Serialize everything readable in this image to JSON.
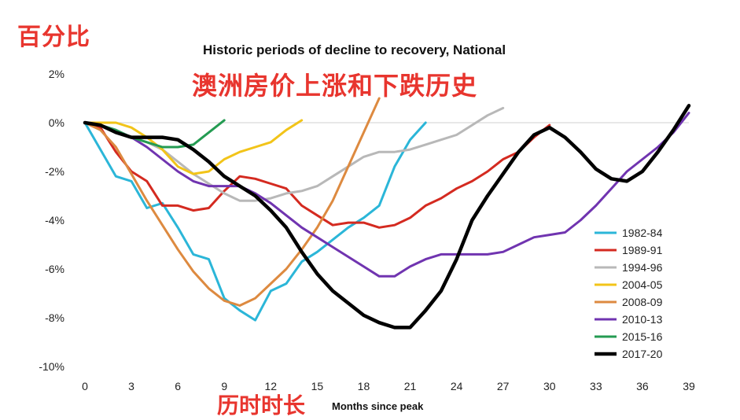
{
  "overlays": {
    "y_unit": "百分比",
    "subtitle": "澳洲房价上涨和下跌历史",
    "x_unit": "历时时长"
  },
  "chart_data": {
    "type": "line",
    "title": "Historic periods of decline to recovery, National",
    "xlabel": "Months since peak",
    "ylabel": "",
    "xlim": [
      0,
      39
    ],
    "ylim": [
      -10,
      2
    ],
    "x_ticks": [
      0,
      3,
      6,
      9,
      12,
      15,
      18,
      21,
      24,
      27,
      30,
      33,
      36,
      39
    ],
    "x_tick_labels": [
      "0",
      "3",
      "6",
      "9",
      "12",
      "15",
      "18",
      "21",
      "24",
      "27",
      "30",
      "33",
      "36",
      "39"
    ],
    "y_ticks": [
      2,
      0,
      -2,
      -4,
      -6,
      -8,
      -10
    ],
    "y_tick_labels": [
      "2%",
      "0%",
      "-2%",
      "-4%",
      "-6%",
      "-8%",
      "-10%"
    ],
    "zero_line": true,
    "legend_position": "right",
    "series": [
      {
        "name": "1982-84",
        "color": "#2bb6d8",
        "width": 3,
        "x": [
          0,
          1,
          2,
          3,
          4,
          5,
          6,
          7,
          8,
          9,
          10,
          11,
          12,
          13,
          14,
          15,
          16,
          17,
          18,
          19,
          20,
          21,
          22
        ],
        "y": [
          0,
          -1.1,
          -2.2,
          -2.4,
          -3.5,
          -3.3,
          -4.3,
          -5.4,
          -5.6,
          -7.2,
          -7.7,
          -8.1,
          -6.9,
          -6.6,
          -5.7,
          -5.3,
          -4.8,
          -4.3,
          -3.9,
          -3.4,
          -1.8,
          -0.7,
          0
        ]
      },
      {
        "name": "1989-91",
        "color": "#d42a20",
        "width": 3,
        "x": [
          0,
          1,
          2,
          3,
          4,
          5,
          6,
          7,
          8,
          9,
          10,
          11,
          12,
          13,
          14,
          15,
          16,
          17,
          18,
          19,
          20,
          21,
          22,
          23,
          24,
          25,
          26,
          27,
          28,
          29,
          30
        ],
        "y": [
          0,
          -0.2,
          -1.2,
          -2.0,
          -2.4,
          -3.4,
          -3.4,
          -3.6,
          -3.5,
          -2.8,
          -2.2,
          -2.3,
          -2.5,
          -2.7,
          -3.4,
          -3.8,
          -4.2,
          -4.1,
          -4.1,
          -4.3,
          -4.2,
          -3.9,
          -3.4,
          -3.1,
          -2.7,
          -2.4,
          -2.0,
          -1.5,
          -1.2,
          -0.6,
          -0.1
        ]
      },
      {
        "name": "1994-96",
        "color": "#b8b8b8",
        "width": 3,
        "x": [
          0,
          1,
          2,
          3,
          4,
          5,
          6,
          7,
          8,
          9,
          10,
          11,
          12,
          13,
          14,
          15,
          16,
          17,
          18,
          19,
          20,
          21,
          22,
          23,
          24,
          25,
          26,
          27
        ],
        "y": [
          0,
          -0.1,
          -0.4,
          -0.6,
          -0.8,
          -1.1,
          -1.6,
          -2.1,
          -2.5,
          -2.9,
          -3.2,
          -3.2,
          -3.1,
          -2.9,
          -2.8,
          -2.6,
          -2.2,
          -1.8,
          -1.4,
          -1.2,
          -1.2,
          -1.1,
          -0.9,
          -0.7,
          -0.5,
          -0.1,
          0.3,
          0.6
        ]
      },
      {
        "name": "2004-05",
        "color": "#f2c419",
        "width": 3,
        "x": [
          0,
          1,
          2,
          3,
          4,
          5,
          6,
          7,
          8,
          9,
          10,
          11,
          12,
          13,
          14
        ],
        "y": [
          0,
          0,
          0,
          -0.2,
          -0.6,
          -1.1,
          -1.8,
          -2.1,
          -2.0,
          -1.5,
          -1.2,
          -1.0,
          -0.8,
          -0.3,
          0.1
        ]
      },
      {
        "name": "2008-09",
        "color": "#dd8a40",
        "width": 3,
        "x": [
          0,
          1,
          2,
          3,
          4,
          5,
          6,
          7,
          8,
          9,
          10,
          11,
          12,
          13,
          14,
          15,
          16,
          17,
          18,
          19
        ],
        "y": [
          0,
          -0.3,
          -1.0,
          -2.1,
          -3.2,
          -4.2,
          -5.2,
          -6.1,
          -6.8,
          -7.3,
          -7.5,
          -7.2,
          -6.6,
          -6.0,
          -5.2,
          -4.3,
          -3.2,
          -1.8,
          -0.4,
          1.0
        ]
      },
      {
        "name": "2010-13",
        "color": "#7034b0",
        "width": 3,
        "x": [
          0,
          1,
          2,
          3,
          4,
          5,
          6,
          7,
          8,
          9,
          10,
          11,
          12,
          13,
          14,
          15,
          16,
          17,
          18,
          19,
          20,
          21,
          22,
          23,
          24,
          25,
          26,
          27,
          28,
          29,
          30,
          31,
          32,
          33,
          34,
          35,
          36,
          37,
          38,
          39
        ],
        "y": [
          0,
          -0.1,
          -0.3,
          -0.6,
          -1.0,
          -1.5,
          -2.0,
          -2.4,
          -2.6,
          -2.6,
          -2.6,
          -2.9,
          -3.3,
          -3.8,
          -4.3,
          -4.7,
          -5.1,
          -5.5,
          -5.9,
          -6.3,
          -6.3,
          -5.9,
          -5.6,
          -5.4,
          -5.4,
          -5.4,
          -5.4,
          -5.3,
          -5.0,
          -4.7,
          -4.6,
          -4.5,
          -4.0,
          -3.4,
          -2.7,
          -2.0,
          -1.5,
          -1.0,
          -0.4,
          0.4
        ]
      },
      {
        "name": "2015-16",
        "color": "#249b52",
        "width": 3,
        "x": [
          0,
          1,
          2,
          3,
          4,
          5,
          6,
          7,
          8,
          9
        ],
        "y": [
          0,
          -0.1,
          -0.3,
          -0.6,
          -0.8,
          -1.0,
          -1.0,
          -0.9,
          -0.4,
          0.1
        ]
      },
      {
        "name": "2017-20",
        "color": "#000000",
        "width": 4.5,
        "x": [
          0,
          1,
          2,
          3,
          4,
          5,
          6,
          7,
          8,
          9,
          10,
          11,
          12,
          13,
          14,
          15,
          16,
          17,
          18,
          19,
          20,
          21,
          22,
          23,
          24,
          25,
          26,
          27,
          28,
          29,
          30,
          31,
          32,
          33,
          34,
          35,
          36,
          37,
          38,
          39
        ],
        "y": [
          0,
          -0.1,
          -0.4,
          -0.6,
          -0.6,
          -0.6,
          -0.7,
          -1.1,
          -1.6,
          -2.2,
          -2.6,
          -3.0,
          -3.6,
          -4.3,
          -5.3,
          -6.2,
          -6.9,
          -7.4,
          -7.9,
          -8.2,
          -8.4,
          -8.4,
          -7.7,
          -6.9,
          -5.6,
          -4.0,
          -3.0,
          -2.1,
          -1.2,
          -0.5,
          -0.2,
          -0.6,
          -1.2,
          -1.9,
          -2.3,
          -2.4,
          -2.0,
          -1.2,
          -0.3,
          0.7
        ]
      }
    ]
  }
}
